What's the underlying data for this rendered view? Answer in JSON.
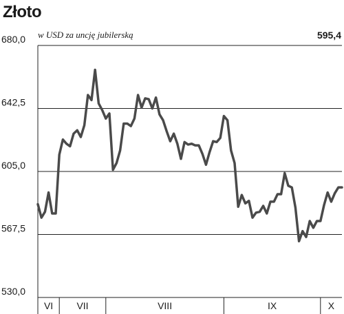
{
  "chart_data": {
    "type": "line",
    "title": "Złoto",
    "subtitle": "w USD za uncję jubilerską",
    "last_value_label": "595,4",
    "ylim": [
      530.0,
      680.0
    ],
    "yticks": [
      {
        "value": 680.0,
        "label": "680,0"
      },
      {
        "value": 642.5,
        "label": "642,5"
      },
      {
        "value": 605.0,
        "label": "605,0"
      },
      {
        "value": 567.5,
        "label": "567,5"
      },
      {
        "value": 530.0,
        "label": "530,0"
      }
    ],
    "grid": true,
    "line_color": "#4a4a4a",
    "month_labels": [
      "VI",
      "VII",
      "VIII",
      "IX",
      "X"
    ],
    "series": [
      {
        "values": [
          585.5,
          577.5,
          581.0,
          592.5,
          580.0,
          580.0,
          615.0,
          624.0,
          621.5,
          620.0,
          627.5,
          629.5,
          625.5,
          632.5,
          650.5,
          647.5,
          665.5,
          645.5,
          641.5,
          636.5,
          639.5,
          606.0,
          610.0,
          617.5,
          633.5,
          633.5,
          632.0,
          636.5,
          650.5,
          643.0,
          648.5,
          648.0,
          642.5,
          649.0,
          639.0,
          635.5,
          629.0,
          623.0,
          627.5,
          621.5,
          612.5,
          622.5,
          621.0,
          621.5,
          620.5,
          620.5,
          615.5,
          609.0,
          616.5,
          623.0,
          622.5,
          625.0,
          638.0,
          635.5,
          617.5,
          610.0,
          584.0,
          591.0,
          586.0,
          587.5,
          577.5,
          580.5,
          581.0,
          584.5,
          580.0,
          587.0,
          587.0,
          591.5,
          591.5,
          604.0,
          596.5,
          595.5,
          583.5,
          563.5,
          569.5,
          566.0,
          575.5,
          571.5,
          575.5,
          575.5,
          585.0,
          592.5,
          587.0,
          592.0,
          595.5,
          595.5
        ]
      }
    ],
    "month_boundaries": [
      6,
      19,
      52,
      79
    ]
  }
}
